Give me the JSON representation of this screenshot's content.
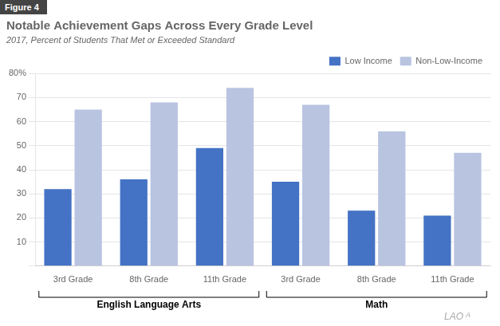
{
  "chart_data": {
    "type": "bar",
    "title": "Notable Achievement Gaps Across Every Grade Level",
    "subtitle": "2017, Percent of Students That Met or Exceeded Standard",
    "categories": [
      "3rd Grade",
      "8th Grade",
      "11th Grade",
      "3rd Grade",
      "8th Grade",
      "11th Grade"
    ],
    "series": [
      {
        "name": "Low Income",
        "color": "#4472C4",
        "values": [
          32,
          36,
          49,
          35,
          23,
          21
        ]
      },
      {
        "name": "Non-Low-Income",
        "color": "#B8C4E0",
        "values": [
          65,
          68,
          74,
          67,
          56,
          47
        ]
      }
    ],
    "ylim": [
      0,
      80
    ],
    "yticks": [
      {
        "value": 0,
        "label": ""
      },
      10,
      20,
      30,
      40,
      50,
      60,
      70,
      {
        "value": 80,
        "label": "80%"
      }
    ],
    "grid": true,
    "legend": "upper right",
    "annotations": {
      "figure_label": "Figure 4",
      "sections": [
        "English Language Arts",
        "Math"
      ],
      "watermark": [
        "LAO",
        "A"
      ]
    }
  }
}
